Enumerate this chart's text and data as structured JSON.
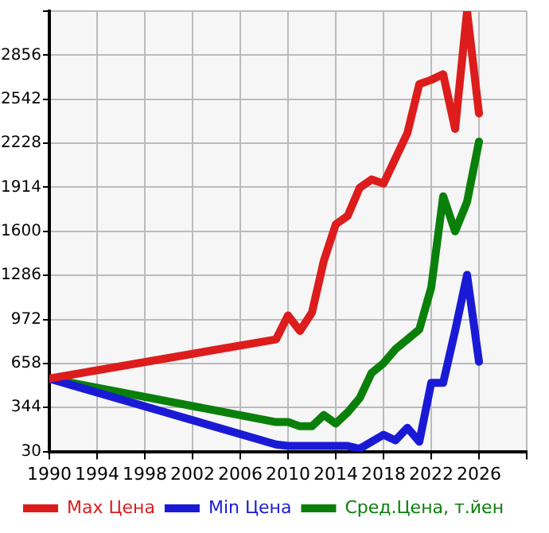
{
  "chart_data": {
    "type": "line",
    "xlim": [
      1990,
      2030
    ],
    "ylim": [
      30,
      3170
    ],
    "xticks": [
      1990,
      1994,
      1998,
      2002,
      2006,
      2010,
      2014,
      2018,
      2022,
      2026,
      {
        "value": 2030,
        "label": null
      }
    ],
    "yticks": [
      30,
      344,
      658,
      972,
      1286,
      1600,
      1914,
      2228,
      2542,
      2856,
      {
        "value": 3170,
        "label": null
      }
    ],
    "grid": true,
    "legend": "bottom",
    "marker": "none",
    "line_style": "solid",
    "series": [
      {
        "name": "Max Цена",
        "color": "#dd1c1c",
        "x": [
          1990,
          2009,
          2010,
          2011,
          2012,
          2013,
          2014,
          2015,
          2016,
          2017,
          2018,
          2019,
          2020,
          2021,
          2022,
          2023,
          2024,
          2025,
          2026
        ],
        "values": [
          550,
          830,
          1000,
          890,
          1020,
          1390,
          1650,
          1710,
          1910,
          1970,
          1940,
          2120,
          2300,
          2650,
          2680,
          2720,
          2330,
          3170,
          2440
        ]
      },
      {
        "name": "Min Цена",
        "color": "#1a1ad6",
        "x": [
          1990,
          2009,
          2010,
          2011,
          2012,
          2013,
          2014,
          2015,
          2016,
          2017,
          2018,
          2019,
          2020,
          2021,
          2022,
          2023,
          2024,
          2025,
          2026
        ],
        "values": [
          550,
          80,
          70,
          70,
          70,
          70,
          70,
          70,
          50,
          100,
          150,
          110,
          200,
          100,
          520,
          520,
          890,
          1290,
          670
        ]
      },
      {
        "name": "Сред.Цена, т.йен",
        "color": "#0a800a",
        "x": [
          1990,
          2009,
          2010,
          2011,
          2012,
          2013,
          2014,
          2015,
          2016,
          2017,
          2018,
          2019,
          2020,
          2021,
          2022,
          2023,
          2024,
          2025,
          2026
        ],
        "values": [
          550,
          240,
          240,
          210,
          210,
          290,
          230,
          310,
          410,
          590,
          660,
          760,
          830,
          900,
          1200,
          1850,
          1600,
          1810,
          2240
        ]
      }
    ]
  }
}
